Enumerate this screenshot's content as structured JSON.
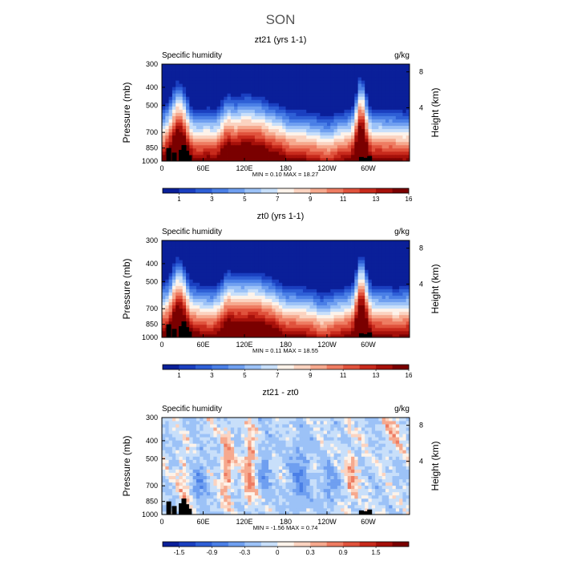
{
  "figure": {
    "title": "SON"
  },
  "colors": {
    "levels": [
      "#0a1f99",
      "#1a3fc0",
      "#2e5fd6",
      "#4a7fe6",
      "#6f9ff0",
      "#9cc2f7",
      "#c8dffa",
      "#fdf3ea",
      "#fbd3c0",
      "#f6a98e",
      "#ee7c62",
      "#e0523c",
      "#c82a1c",
      "#a6100a",
      "#7a0000"
    ],
    "terrain": "#000000",
    "frame": "#000000"
  },
  "chart_data": [
    {
      "type": "heatmap",
      "title": "zt21 (yrs 1-1)",
      "left_label": "Specific humidity",
      "units": "g/kg",
      "ylabel": "Pressure (mb)",
      "ylabel_right": "Height (km)",
      "x_ticks": [
        "0",
        "60E",
        "120E",
        "180",
        "120W",
        "60W"
      ],
      "x_tick_lon": [
        0,
        60,
        120,
        180,
        240,
        300
      ],
      "xlim": [
        0,
        360
      ],
      "y_ticks": [
        "300",
        "400",
        "500",
        "700",
        "850",
        "1000"
      ],
      "y_tick_p": [
        300,
        400,
        500,
        700,
        850,
        1000
      ],
      "ylim": [
        1000,
        300
      ],
      "y_scale": "log-pressure",
      "right_ticks": [
        "8",
        "4"
      ],
      "right_tick_km": [
        8,
        4
      ],
      "stats_text": "MIN =   0.10   MAX =   18.27",
      "min": 0.1,
      "max": 18.27,
      "colorbar_labels": [
        "1",
        "3",
        "5",
        "7",
        "9",
        "11",
        "13",
        "16"
      ],
      "colorbar_levels": [
        0.5,
        1,
        2,
        3,
        4,
        5,
        6,
        7,
        8,
        9,
        10,
        11,
        12,
        13,
        14,
        16
      ],
      "field": "absolute"
    },
    {
      "type": "heatmap",
      "title": "zt0 (yrs 1-1)",
      "left_label": "Specific humidity",
      "units": "g/kg",
      "ylabel": "Pressure (mb)",
      "ylabel_right": "Height (km)",
      "x_ticks": [
        "0",
        "60E",
        "120E",
        "180",
        "120W",
        "60W"
      ],
      "x_tick_lon": [
        0,
        60,
        120,
        180,
        240,
        300
      ],
      "xlim": [
        0,
        360
      ],
      "y_ticks": [
        "300",
        "400",
        "500",
        "700",
        "850",
        "1000"
      ],
      "y_tick_p": [
        300,
        400,
        500,
        700,
        850,
        1000
      ],
      "ylim": [
        1000,
        300
      ],
      "y_scale": "log-pressure",
      "right_ticks": [
        "8",
        "4"
      ],
      "right_tick_km": [
        8,
        4
      ],
      "stats_text": "MIN =   0.11   MAX =   18.55",
      "min": 0.11,
      "max": 18.55,
      "colorbar_labels": [
        "1",
        "3",
        "5",
        "7",
        "9",
        "11",
        "13",
        "16"
      ],
      "colorbar_levels": [
        0.5,
        1,
        2,
        3,
        4,
        5,
        6,
        7,
        8,
        9,
        10,
        11,
        12,
        13,
        14,
        16
      ],
      "field": "absolute"
    },
    {
      "type": "heatmap",
      "title": "zt21 - zt0",
      "left_label": "Specific humidity",
      "units": "g/kg",
      "ylabel": "Pressure (mb)",
      "ylabel_right": "Height (km)",
      "x_ticks": [
        "0",
        "60E",
        "120E",
        "180",
        "120W",
        "60W"
      ],
      "x_tick_lon": [
        0,
        60,
        120,
        180,
        240,
        300
      ],
      "xlim": [
        0,
        360
      ],
      "y_ticks": [
        "300",
        "400",
        "500",
        "700",
        "850",
        "1000"
      ],
      "y_tick_p": [
        300,
        400,
        500,
        700,
        850,
        1000
      ],
      "ylim": [
        1000,
        300
      ],
      "y_scale": "log-pressure",
      "right_ticks": [
        "8",
        "4"
      ],
      "right_tick_km": [
        8,
        4
      ],
      "stats_text": "MIN =  -1.56   MAX =   0.74",
      "min": -1.56,
      "max": 0.74,
      "colorbar_labels": [
        "-1.5",
        "-0.9",
        "-0.3",
        "0",
        "0.3",
        "0.9",
        "1.5"
      ],
      "colorbar_levels": [
        -1.8,
        -1.5,
        -1.2,
        -0.9,
        -0.6,
        -0.3,
        -0.1,
        0,
        0.1,
        0.3,
        0.6,
        0.9,
        1.2,
        1.5,
        1.8
      ],
      "field": "difference"
    }
  ]
}
